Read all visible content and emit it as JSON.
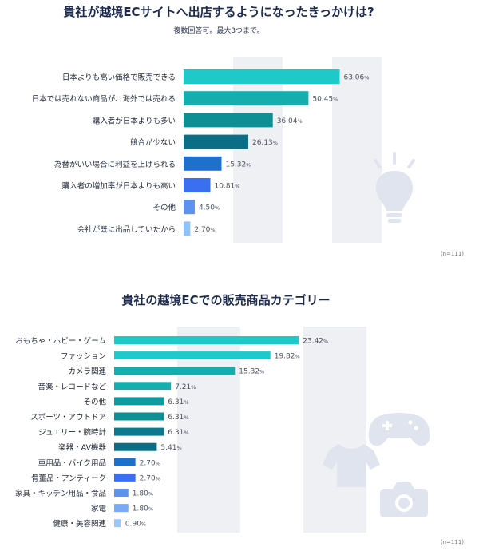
{
  "chart_data": [
    {
      "type": "bar",
      "orientation": "horizontal",
      "title": "貴社が越境ECサイトへ出店するようになったきっかけは?",
      "subtitle": "複数回答可。最大3つまで。",
      "categories": [
        "日本よりも高い価格で販売できる",
        "日本では売れない商品が、海外では売れる",
        "購入者が日本よりも多い",
        "競合が少ない",
        "為替がいい場合に利益を上げられる",
        "購入者の増加率が日本よりも高い",
        "その他",
        "会社が既に出品していたから"
      ],
      "values": [
        63.06,
        50.45,
        36.04,
        26.13,
        15.32,
        10.81,
        4.5,
        2.7
      ],
      "value_labels": [
        "63.06",
        "50.45",
        "36.04",
        "26.13",
        "15.32",
        "10.81",
        "4.50",
        "2.70"
      ],
      "unit": "%",
      "note": "(n=111)",
      "xlim": [
        0,
        100
      ],
      "grid": "alternating shaded bands",
      "bar_colors": [
        "#1ec9c9",
        "#14aeae",
        "#0d8f94",
        "#0b6e86",
        "#1f6fcc",
        "#3a6ff0",
        "#5d93ee",
        "#8ec2f8"
      ],
      "icon": "lightbulb-icon"
    },
    {
      "type": "bar",
      "orientation": "horizontal",
      "title": "貴社の越境ECでの販売商品カテゴリー",
      "categories": [
        "おもちゃ・ホビー・ゲーム",
        "ファッション",
        "カメラ関連",
        "音楽・レコードなど",
        "その他",
        "スポーツ・アウトドア",
        "ジュエリー・腕時計",
        "楽器・AV機器",
        "車用品・バイク用品",
        "骨董品・アンティーク",
        "家具・キッチン用品・食品",
        "家電",
        "健康・美容関連"
      ],
      "values": [
        23.42,
        19.82,
        15.32,
        7.21,
        6.31,
        6.31,
        6.31,
        5.41,
        2.7,
        2.7,
        1.8,
        1.8,
        0.9
      ],
      "value_labels": [
        "23.42",
        "19.82",
        "15.32",
        "7.21",
        "6.31",
        "6.31",
        "6.31",
        "5.41",
        "2.70",
        "2.70",
        "1.80",
        "1.80",
        "0.90"
      ],
      "unit": "%",
      "note": "(n=111)",
      "xlim": [
        0,
        40
      ],
      "grid": "alternating shaded bands",
      "bar_colors": [
        "#1ec9c9",
        "#1ec9c9",
        "#14aeae",
        "#14aeae",
        "#0f9aa0",
        "#0d8f94",
        "#0b7a8c",
        "#0b6e86",
        "#1f6fcc",
        "#3a6ff0",
        "#5d93ee",
        "#7aaaf4",
        "#9cc8f8"
      ],
      "icons": [
        "shirt-icon",
        "gamepad-icon",
        "camera-icon"
      ]
    }
  ]
}
